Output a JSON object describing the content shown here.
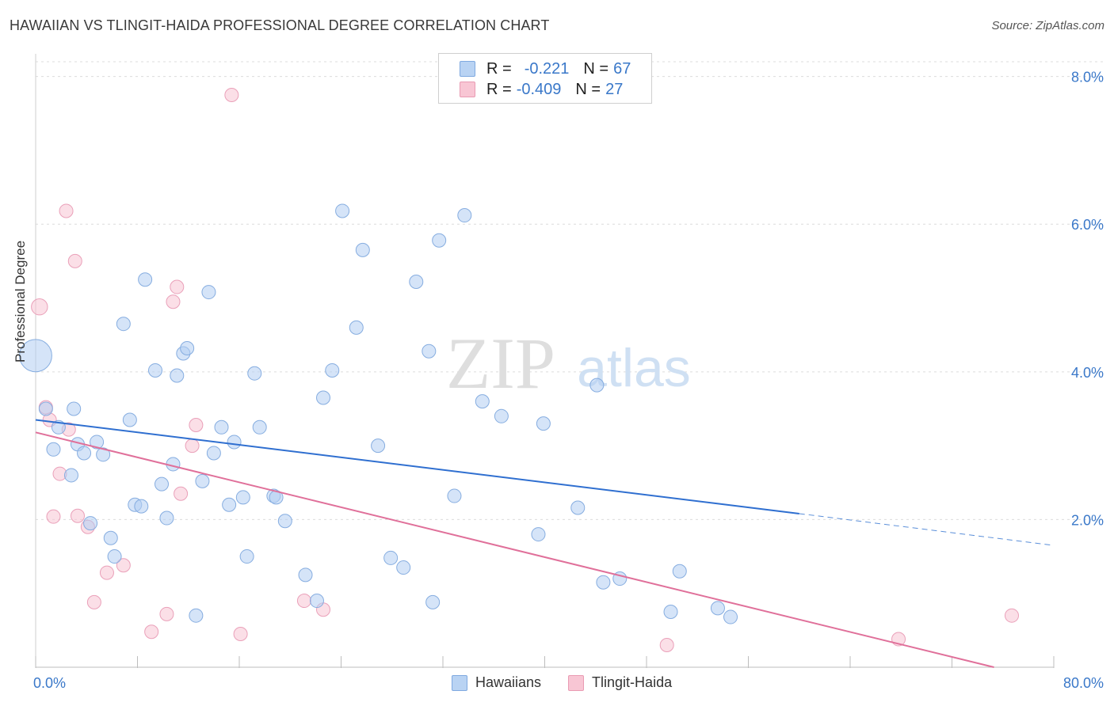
{
  "header": {
    "title": "HAWAIIAN VS TLINGIT-HAIDA PROFESSIONAL DEGREE CORRELATION CHART",
    "source": "Source: ZipAtlas.com"
  },
  "watermark": {
    "zip": "ZIP",
    "atlas": "atlas"
  },
  "legend": {
    "rows": [
      {
        "r_label": "R =",
        "r_value": "-0.221",
        "n_label": "N =",
        "n_value": "67",
        "fill": "#b9d3f3",
        "stroke": "#7fa9e0"
      },
      {
        "r_label": "R =",
        "r_value": "-0.409",
        "n_label": "N =",
        "n_value": "27",
        "fill": "#f8c6d4",
        "stroke": "#e99bb3"
      }
    ]
  },
  "bottom_legend": [
    {
      "label": "Hawaiians",
      "fill": "#b9d3f3",
      "stroke": "#7fa9e0"
    },
    {
      "label": "Tlingit-Haida",
      "fill": "#f8c6d4",
      "stroke": "#e99bb3"
    }
  ],
  "chart_data": {
    "type": "scatter",
    "title": "HAWAIIAN VS TLINGIT-HAIDA PROFESSIONAL DEGREE CORRELATION CHART",
    "xlabel": "",
    "ylabel": "Professional Degree",
    "xlim": [
      0,
      80
    ],
    "ylim": [
      0,
      8.2
    ],
    "x_tick_labels": [
      "0.0%",
      "80.0%"
    ],
    "y_ticks": [
      2,
      4,
      6,
      8
    ],
    "y_tick_labels": [
      "2.0%",
      "4.0%",
      "6.0%",
      "8.0%"
    ],
    "grid": true,
    "legend_position": "top-center",
    "colors": {
      "hawaiians": "#3a78d4",
      "tlingit": "#e0709a"
    },
    "series": [
      {
        "name": "Hawaiians",
        "r": -0.221,
        "n": 67,
        "trend": {
          "x0": 0,
          "y0": 3.35,
          "x1": 60,
          "y1": 2.08,
          "dashed_to_x": 80,
          "dashed_to_y": 1.65
        },
        "points": [
          [
            0,
            4.22,
            2.4
          ],
          [
            0.8,
            3.5,
            1
          ],
          [
            1.4,
            2.95,
            1
          ],
          [
            1.8,
            3.25,
            1
          ],
          [
            2.8,
            2.6,
            1
          ],
          [
            3.0,
            3.5,
            1
          ],
          [
            3.3,
            3.02,
            1
          ],
          [
            3.8,
            2.9,
            1
          ],
          [
            4.3,
            1.95,
            1
          ],
          [
            4.8,
            3.05,
            1
          ],
          [
            5.3,
            2.88,
            1
          ],
          [
            5.9,
            1.75,
            1
          ],
          [
            6.2,
            1.5,
            1
          ],
          [
            6.9,
            4.65,
            1
          ],
          [
            7.4,
            3.35,
            1
          ],
          [
            7.8,
            2.2,
            1
          ],
          [
            8.3,
            2.18,
            1
          ],
          [
            8.6,
            5.25,
            1
          ],
          [
            9.4,
            4.02,
            1
          ],
          [
            9.9,
            2.48,
            1
          ],
          [
            10.3,
            2.02,
            1
          ],
          [
            10.8,
            2.75,
            1
          ],
          [
            11.1,
            3.95,
            1
          ],
          [
            11.6,
            4.25,
            1
          ],
          [
            11.9,
            4.32,
            1
          ],
          [
            12.6,
            0.7,
            1
          ],
          [
            13.1,
            2.52,
            1
          ],
          [
            13.6,
            5.08,
            1
          ],
          [
            14.0,
            2.9,
            1
          ],
          [
            14.6,
            3.25,
            1
          ],
          [
            15.2,
            2.2,
            1
          ],
          [
            15.6,
            3.05,
            1
          ],
          [
            16.3,
            2.3,
            1
          ],
          [
            16.6,
            1.5,
            1
          ],
          [
            17.2,
            3.98,
            1
          ],
          [
            17.6,
            3.25,
            1
          ],
          [
            18.7,
            2.32,
            1
          ],
          [
            18.9,
            2.3,
            1
          ],
          [
            19.6,
            1.98,
            1
          ],
          [
            21.2,
            1.25,
            1
          ],
          [
            22.1,
            0.9,
            1
          ],
          [
            22.6,
            3.65,
            1
          ],
          [
            23.3,
            4.02,
            1
          ],
          [
            24.1,
            6.18,
            1
          ],
          [
            25.2,
            4.6,
            1
          ],
          [
            25.7,
            5.65,
            1
          ],
          [
            26.9,
            3.0,
            1
          ],
          [
            27.9,
            1.48,
            1
          ],
          [
            28.9,
            1.35,
            1
          ],
          [
            29.9,
            5.22,
            1
          ],
          [
            30.9,
            4.28,
            1
          ],
          [
            31.2,
            0.88,
            1
          ],
          [
            31.7,
            5.78,
            1
          ],
          [
            32.9,
            2.32,
            1
          ],
          [
            33.7,
            6.12,
            1
          ],
          [
            35.1,
            3.6,
            1
          ],
          [
            36.6,
            3.4,
            1
          ],
          [
            39.5,
            1.8,
            1
          ],
          [
            39.9,
            3.3,
            1
          ],
          [
            42.6,
            2.16,
            1
          ],
          [
            44.1,
            3.82,
            1
          ],
          [
            44.6,
            1.15,
            1
          ],
          [
            45.9,
            1.2,
            1
          ],
          [
            49.9,
            0.75,
            1
          ],
          [
            50.6,
            1.3,
            1
          ],
          [
            53.6,
            0.8,
            1
          ],
          [
            54.6,
            0.68,
            1
          ]
        ]
      },
      {
        "name": "Tlingit-Haida",
        "r": -0.409,
        "n": 27,
        "trend": {
          "x0": 0,
          "y0": 3.18,
          "x1": 75.3,
          "y1": 0
        },
        "points": [
          [
            0.3,
            4.88,
            1.2
          ],
          [
            0.8,
            3.52,
            1
          ],
          [
            1.1,
            3.35,
            1
          ],
          [
            1.4,
            2.04,
            1
          ],
          [
            1.9,
            2.62,
            1
          ],
          [
            2.4,
            6.18,
            1
          ],
          [
            2.6,
            3.22,
            1
          ],
          [
            3.1,
            5.5,
            1
          ],
          [
            3.3,
            2.05,
            1
          ],
          [
            4.1,
            1.9,
            1
          ],
          [
            4.6,
            0.88,
            1
          ],
          [
            5.6,
            1.28,
            1
          ],
          [
            6.9,
            1.38,
            1
          ],
          [
            9.1,
            0.48,
            1
          ],
          [
            10.3,
            0.72,
            1
          ],
          [
            10.8,
            4.95,
            1
          ],
          [
            11.1,
            5.15,
            1
          ],
          [
            11.4,
            2.35,
            1
          ],
          [
            12.3,
            3.0,
            1
          ],
          [
            12.6,
            3.28,
            1
          ],
          [
            15.4,
            7.75,
            1
          ],
          [
            16.1,
            0.45,
            1
          ],
          [
            21.1,
            0.9,
            1
          ],
          [
            22.6,
            0.78,
            1
          ],
          [
            49.6,
            0.3,
            1
          ],
          [
            67.8,
            0.38,
            1
          ],
          [
            76.7,
            0.7,
            1
          ]
        ]
      }
    ]
  }
}
